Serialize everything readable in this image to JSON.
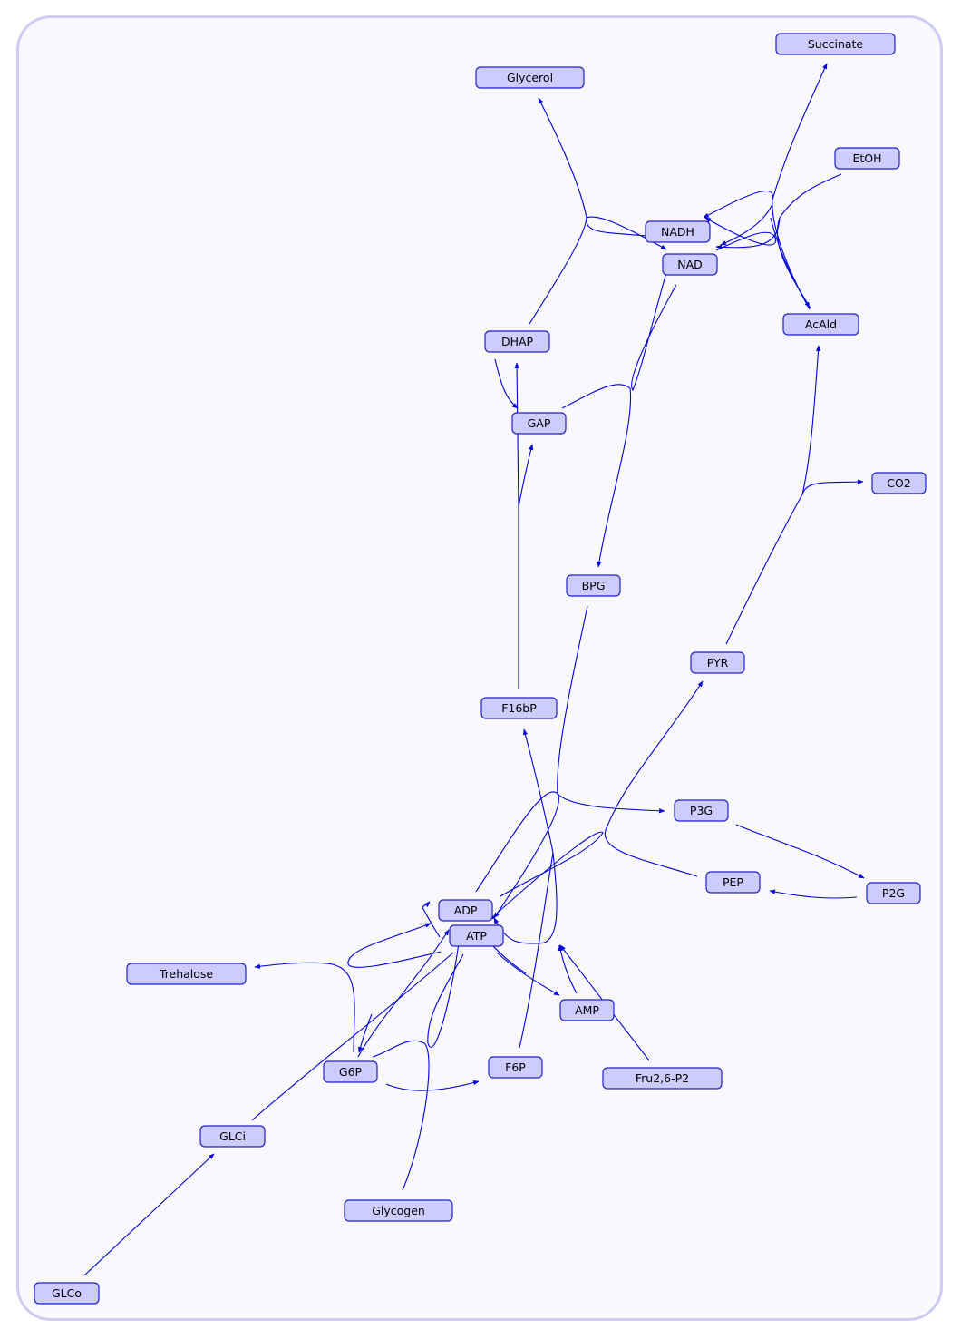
{
  "nodes": [
    {
      "id": "Succinate",
      "label": "Succinate"
    },
    {
      "id": "Glycerol",
      "label": "Glycerol"
    },
    {
      "id": "EtOH",
      "label": "EtOH"
    },
    {
      "id": "NADH",
      "label": "NADH"
    },
    {
      "id": "NAD",
      "label": "NAD"
    },
    {
      "id": "AcAld",
      "label": "AcAld"
    },
    {
      "id": "DHAP",
      "label": "DHAP"
    },
    {
      "id": "GAP",
      "label": "GAP"
    },
    {
      "id": "CO2",
      "label": "CO2"
    },
    {
      "id": "BPG",
      "label": "BPG"
    },
    {
      "id": "PYR",
      "label": "PYR"
    },
    {
      "id": "F16bP",
      "label": "F16bP"
    },
    {
      "id": "P3G",
      "label": "P3G"
    },
    {
      "id": "PEP",
      "label": "PEP"
    },
    {
      "id": "P2G",
      "label": "P2G"
    },
    {
      "id": "ADP",
      "label": "ADP"
    },
    {
      "id": "ATP",
      "label": "ATP"
    },
    {
      "id": "Trehalose",
      "label": "Trehalose"
    },
    {
      "id": "AMP",
      "label": "AMP"
    },
    {
      "id": "G6P",
      "label": "G6P"
    },
    {
      "id": "F6P",
      "label": "F6P"
    },
    {
      "id": "Fru26P2",
      "label": "Fru2,6-P2"
    },
    {
      "id": "GLCi",
      "label": "GLCi"
    },
    {
      "id": "Glycogen",
      "label": "Glycogen"
    },
    {
      "id": "GLCo",
      "label": "GLCo"
    }
  ],
  "edges": [
    {
      "from": "GLCo",
      "to": "GLCi"
    },
    {
      "from": "GLCi",
      "to": "G6P"
    },
    {
      "from": "ATP",
      "to": "ADP"
    },
    {
      "from": "G6P",
      "to": "F6P"
    },
    {
      "from": "G6P",
      "to": "Trehalose"
    },
    {
      "from": "G6P",
      "to": "Glycogen"
    },
    {
      "from": "F6P",
      "to": "F16bP"
    },
    {
      "from": "Fru26P2",
      "to": "ATP"
    },
    {
      "from": "AMP",
      "to": "ATP"
    },
    {
      "from": "F16bP",
      "to": "DHAP"
    },
    {
      "from": "F16bP",
      "to": "GAP"
    },
    {
      "from": "DHAP",
      "to": "GAP"
    },
    {
      "from": "DHAP",
      "to": "Glycerol"
    },
    {
      "from": "NADH",
      "to": "NAD"
    },
    {
      "from": "GAP",
      "to": "BPG"
    },
    {
      "from": "NAD",
      "to": "NADH"
    },
    {
      "from": "BPG",
      "to": "P3G"
    },
    {
      "from": "ADP",
      "to": "ATP"
    },
    {
      "from": "P3G",
      "to": "P2G"
    },
    {
      "from": "P2G",
      "to": "PEP"
    },
    {
      "from": "PEP",
      "to": "PYR"
    },
    {
      "from": "PYR",
      "to": "AcAld"
    },
    {
      "from": "PYR",
      "to": "CO2"
    },
    {
      "from": "AcAld",
      "to": "EtOH"
    },
    {
      "from": "AcAld",
      "to": "Succinate"
    },
    {
      "from": "ATP",
      "to": "AMP"
    }
  ]
}
